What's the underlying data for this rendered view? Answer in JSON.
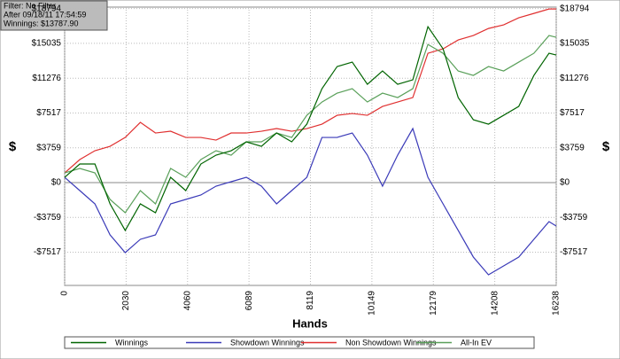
{
  "info": {
    "filter": "Filter: No Filter",
    "after": "After 09/18/11 17:54:59",
    "winnings": "Winnings: $13787.90"
  },
  "chart_data": {
    "type": "line",
    "x_label": "Hands",
    "y_label": "$",
    "grid": true,
    "x": [
      0,
      500,
      1000,
      1500,
      2000,
      2500,
      3000,
      3500,
      4000,
      4500,
      5000,
      5500,
      6000,
      6500,
      7000,
      7500,
      8000,
      8500,
      9000,
      9500,
      10000,
      10500,
      11000,
      11500,
      12000,
      12500,
      13000,
      13500,
      14000,
      14500,
      15000,
      15500,
      16000,
      16238
    ],
    "series": [
      {
        "name": "Winnings",
        "color": "#006400",
        "values": [
          574,
          2009,
          2009,
          -2296,
          -5165,
          -2296,
          -3252,
          574,
          -861,
          2009,
          2965,
          3444,
          4400,
          3922,
          5357,
          4400,
          6313,
          10139,
          12530,
          13009,
          10617,
          12052,
          10617,
          11095,
          16834,
          14443,
          9182,
          6791,
          6313,
          7269,
          8226,
          11574,
          13965,
          13774
        ]
      },
      {
        "name": "Showdown Winnings",
        "color": "#3a3ab8",
        "values": [
          574,
          -861,
          -2296,
          -5644,
          -7557,
          -6122,
          -5644,
          -2296,
          -1817,
          -1339,
          -383,
          96,
          574,
          -383,
          -2296,
          -861,
          574,
          4878,
          4878,
          5357,
          2965,
          -383,
          2965,
          5835,
          574,
          -2296,
          -5165,
          -8035,
          -9948,
          -8991,
          -8035,
          -6122,
          -4209,
          -4687
        ]
      },
      {
        "name": "Non Showdown Winnings",
        "color": "#e03030",
        "values": [
          1052,
          2487,
          3444,
          3922,
          4878,
          6504,
          5357,
          5548,
          4878,
          4878,
          4591,
          5357,
          5357,
          5548,
          5835,
          5548,
          5835,
          6313,
          7269,
          7461,
          7269,
          8226,
          8704,
          9182,
          13965,
          14443,
          15400,
          15878,
          16643,
          17026,
          17791,
          18269,
          18747,
          18747
        ]
      },
      {
        "name": "All-In EV",
        "color": "#5aa05a",
        "values": [
          1052,
          1530,
          1052,
          -1817,
          -3252,
          -861,
          -2296,
          1530,
          574,
          2487,
          3444,
          2965,
          4400,
          4400,
          5357,
          4878,
          7269,
          8704,
          9661,
          10139,
          8704,
          9661,
          9182,
          10139,
          14921,
          13965,
          12052,
          11574,
          12530,
          12052,
          13009,
          13965,
          15878,
          15687
        ]
      }
    ],
    "xlim": [
      0,
      16238
    ],
    "xticks": [
      0,
      2030,
      4060,
      6089,
      8119,
      10149,
      12179,
      14208,
      16238
    ],
    "ylim": [
      -11100,
      18950
    ],
    "yticks": [
      {
        "value": -7517,
        "label": "-$7517"
      },
      {
        "value": -3759,
        "label": "-$3759"
      },
      {
        "value": 0,
        "label": "$0"
      },
      {
        "value": 3759,
        "label": "$3759"
      },
      {
        "value": 7517,
        "label": "$7517"
      },
      {
        "value": 11276,
        "label": "$11276"
      },
      {
        "value": 15035,
        "label": "$15035"
      },
      {
        "value": 18794,
        "label": "$18794"
      }
    ]
  }
}
